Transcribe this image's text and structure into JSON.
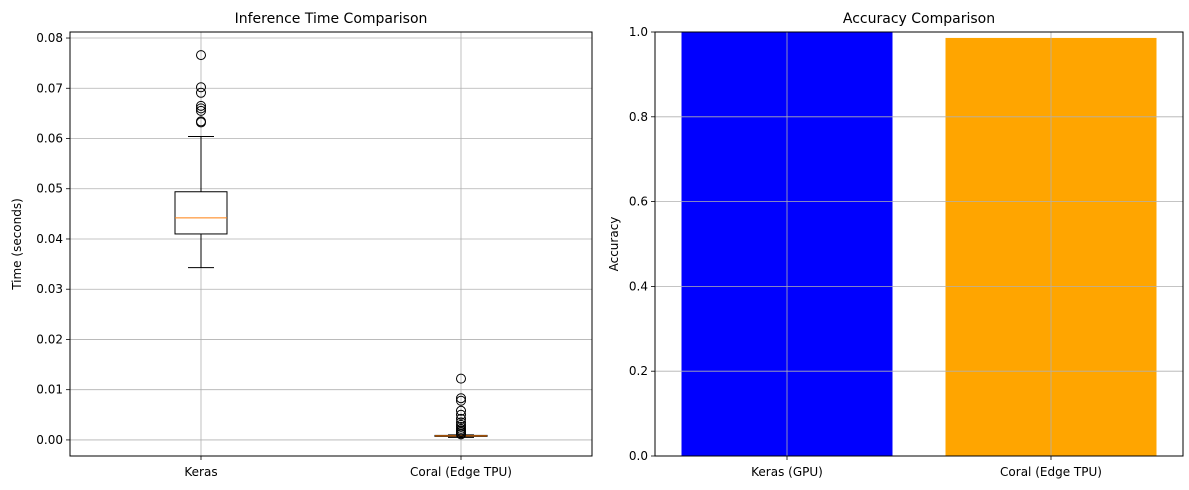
{
  "chart_data": [
    {
      "type": "box",
      "title": "Inference Time Comparison",
      "xlabel": "",
      "ylabel": "Time (seconds)",
      "ylim": [
        -0.0032,
        0.0812
      ],
      "yticks": [
        0.0,
        0.01,
        0.02,
        0.03,
        0.04,
        0.05,
        0.06,
        0.07,
        0.08
      ],
      "ytick_labels": [
        "0.00",
        "0.01",
        "0.02",
        "0.03",
        "0.04",
        "0.05",
        "0.06",
        "0.07",
        "0.08"
      ],
      "grid": true,
      "categories": [
        "Keras",
        "Coral (Edge TPU)"
      ],
      "boxes": [
        {
          "category": "Keras",
          "whisker_low": 0.0343,
          "q1": 0.041,
          "median": 0.0442,
          "q3": 0.0494,
          "whisker_high": 0.0604,
          "outliers": [
            0.0766,
            0.0702,
            0.0691,
            0.0665,
            0.066,
            0.0655,
            0.0634,
            0.0632
          ]
        },
        {
          "category": "Coral (Edge TPU)",
          "whisker_low": 0.0005,
          "q1": 0.0007,
          "median": 0.0008,
          "q3": 0.0009,
          "whisker_high": 0.001,
          "outliers": [
            0.0122,
            0.0083,
            0.0078,
            0.0058,
            0.005,
            0.0042,
            0.0035,
            0.003,
            0.0026,
            0.0022,
            0.0019,
            0.0016,
            0.0013,
            0.0011
          ]
        }
      ],
      "colors": {
        "box": "#000000",
        "median": "#ff7f0e",
        "grid": "#b0b0b0"
      }
    },
    {
      "type": "bar",
      "title": "Accuracy Comparison",
      "xlabel": "",
      "ylabel": "Accuracy",
      "ylim": [
        0,
        1.0
      ],
      "yticks": [
        0.0,
        0.2,
        0.4,
        0.6,
        0.8,
        1.0
      ],
      "ytick_labels": [
        "0.0",
        "0.2",
        "0.4",
        "0.6",
        "0.8",
        "1.0"
      ],
      "grid": true,
      "categories": [
        "Keras (GPU)",
        "Coral (Edge TPU)"
      ],
      "values": [
        1.0,
        0.986
      ],
      "bar_colors": [
        "#0000ff",
        "#ffa500"
      ],
      "colors": {
        "grid": "#b0b0b0"
      }
    }
  ]
}
